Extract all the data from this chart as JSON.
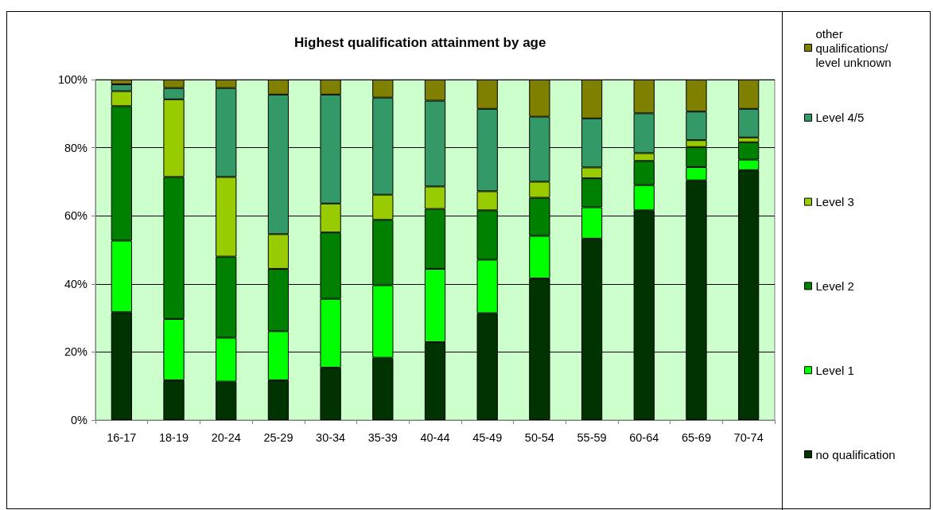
{
  "chart_data": {
    "type": "bar",
    "title": "Highest qualification attainment by age",
    "categories": [
      "16-17",
      "18-19",
      "20-24",
      "25-29",
      "30-34",
      "35-39",
      "40-44",
      "45-49",
      "50-54",
      "55-59",
      "60-64",
      "65-69",
      "70-74"
    ],
    "series": [
      {
        "name": "no qualification",
        "color": "#003300",
        "values": [
          31.7,
          11.7,
          11.3,
          11.7,
          15.4,
          18.3,
          22.9,
          31.4,
          41.6,
          53.3,
          61.6,
          70.4,
          73.4
        ]
      },
      {
        "name": "Level 1",
        "color": "#00ff00",
        "values": [
          21.0,
          18.0,
          12.9,
          14.4,
          20.2,
          21.3,
          21.5,
          15.7,
          12.5,
          9.2,
          7.4,
          3.9,
          3.1
        ]
      },
      {
        "name": "Level 2",
        "color": "#008000",
        "values": [
          39.5,
          41.7,
          23.8,
          18.3,
          19.5,
          19.2,
          17.6,
          14.5,
          11.2,
          8.5,
          7.1,
          5.9,
          5.1
        ]
      },
      {
        "name": "Level 3",
        "color": "#99cc00",
        "values": [
          4.4,
          22.8,
          23.4,
          10.2,
          8.5,
          7.4,
          6.6,
          5.6,
          4.7,
          3.2,
          2.3,
          2.0,
          1.4
        ]
      },
      {
        "name": "Level 4/5",
        "color": "#339966",
        "values": [
          2.0,
          3.3,
          26.1,
          41.0,
          32.0,
          28.5,
          25.2,
          24.2,
          19.1,
          14.4,
          11.7,
          8.4,
          8.4
        ]
      },
      {
        "name": "other qualifications/level unknown",
        "color": "#808000",
        "values": [
          1.4,
          2.5,
          2.5,
          4.4,
          4.4,
          5.3,
          6.2,
          8.6,
          10.9,
          11.4,
          9.9,
          9.4,
          8.6
        ]
      }
    ],
    "stacked": true,
    "ylim": [
      0,
      100
    ],
    "yticks": [
      {
        "value": 0,
        "label": "0%"
      },
      {
        "value": 20,
        "label": "20%"
      },
      {
        "value": 40,
        "label": "40%"
      },
      {
        "value": 60,
        "label": "60%"
      },
      {
        "value": 80,
        "label": "80%"
      },
      {
        "value": 100,
        "label": "100%"
      }
    ],
    "grid": "y",
    "legend": "right"
  }
}
